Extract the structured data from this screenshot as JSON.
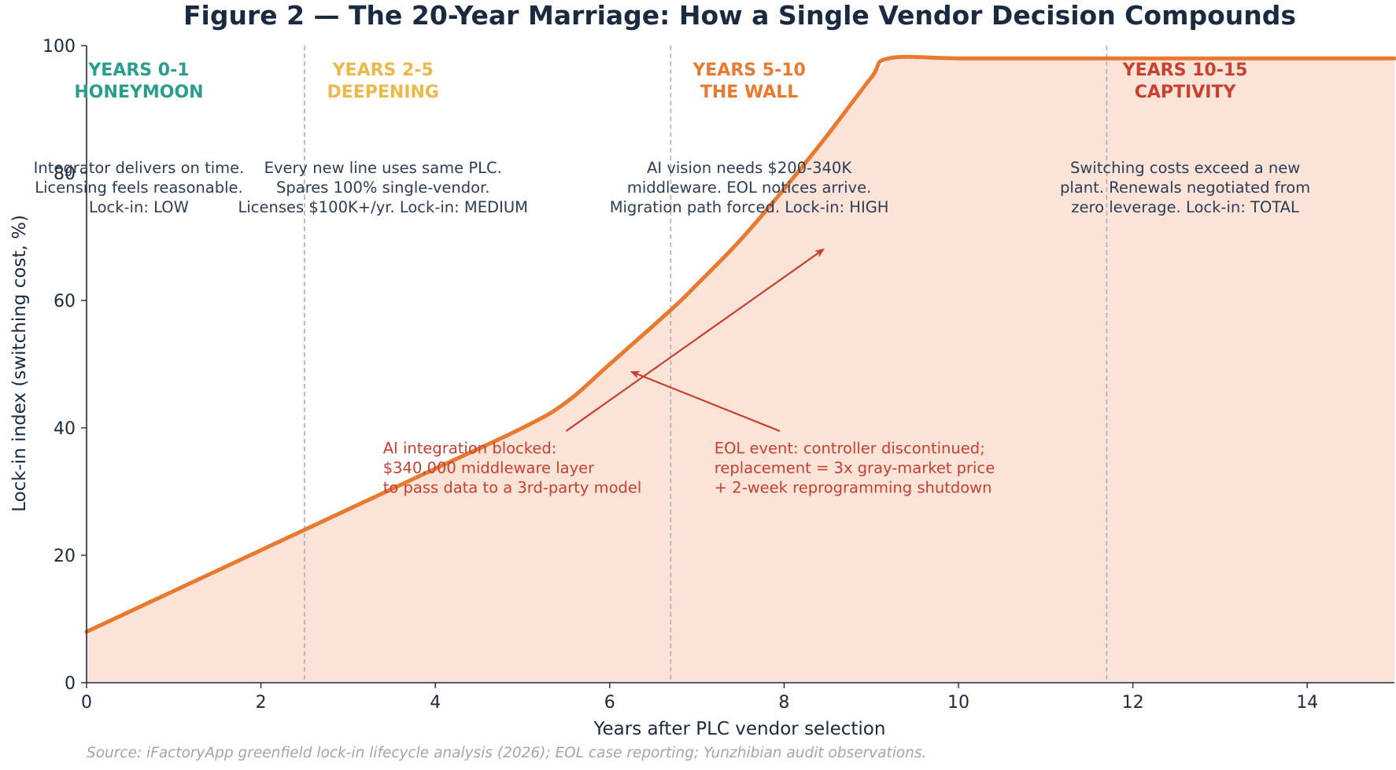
{
  "chart_data": {
    "type": "area",
    "title": "Figure 2 — The 20-Year Marriage: How a Single Vendor Decision Compounds",
    "xlabel": "Years after PLC vendor selection",
    "ylabel": "Lock-in index (switching cost, %)",
    "xlim": [
      0,
      15
    ],
    "ylim": [
      0,
      100
    ],
    "xticks": [
      0,
      2,
      4,
      6,
      8,
      10,
      12,
      14
    ],
    "yticks": [
      0,
      20,
      40,
      60,
      80,
      100
    ],
    "grid": false,
    "series": [
      {
        "x": [
          0,
          1,
          2,
          2.5,
          3,
          4,
          5,
          5.5,
          6,
          6.7,
          7,
          7.5,
          8,
          8.5,
          9,
          9.2,
          10,
          11,
          12,
          13,
          14,
          15
        ],
        "y": [
          8,
          14.4,
          20.8,
          24,
          27.2,
          33.6,
          40,
          44,
          50,
          58.5,
          62.5,
          69.5,
          77.5,
          86,
          95,
          98,
          98,
          98,
          98,
          98,
          98,
          98
        ]
      }
    ],
    "phase_boundaries": [
      2.5,
      6.7,
      11.7
    ],
    "phases": [
      {
        "title": "YEARS 0-1",
        "subtitle": "HONEYMOON",
        "color": "#2a9d8f",
        "desc": [
          "Integrator delivers on time.",
          "Licensing feels reasonable.",
          "Lock-in: LOW"
        ]
      },
      {
        "title": "YEARS 2-5",
        "subtitle": "DEEPENING",
        "color": "#e9b949",
        "desc": [
          "Every new line uses same PLC.",
          "Spares 100% single-vendor.",
          "Licenses $100K+/yr. Lock-in: MEDIUM"
        ]
      },
      {
        "title": "YEARS 5-10",
        "subtitle": "THE WALL",
        "color": "#e8792f",
        "desc": [
          "AI vision needs $200-340K",
          "middleware. EOL notices arrive.",
          "Migration path forced. Lock-in: HIGH"
        ]
      },
      {
        "title": "YEARS 10-15",
        "subtitle": "CAPTIVITY",
        "color": "#c8402f",
        "desc": [
          "Switching costs exceed a new",
          "plant. Renewals negotiated from",
          "zero leverage. Lock-in: TOTAL"
        ]
      }
    ],
    "annotations": [
      {
        "lines": [
          "AI integration blocked:",
          "$340,000 middleware layer",
          "to pass data to a 3rd-party model"
        ],
        "text_xy": [
          3.4,
          36
        ],
        "arrow_from": [
          5.5,
          39.5
        ],
        "arrow_to": [
          8.45,
          68
        ]
      },
      {
        "lines": [
          "EOL event: controller discontinued;",
          "replacement = 3x gray-market price",
          "+ 2-week reprogramming shutdown"
        ],
        "text_xy": [
          7.2,
          36
        ],
        "arrow_from": [
          7.95,
          39.5
        ],
        "arrow_to": [
          6.25,
          48.8
        ]
      }
    ],
    "source": "Source: iFactoryApp greenfield lock-in lifecycle analysis (2026); EOL case reporting; Yunzhibian audit observations.",
    "colors": {
      "line": "#e8792f",
      "fill": "#fbe3d8",
      "axis": "#1a2a40",
      "boundary": "#a9b1bd",
      "annotation": "#c8402f"
    }
  }
}
